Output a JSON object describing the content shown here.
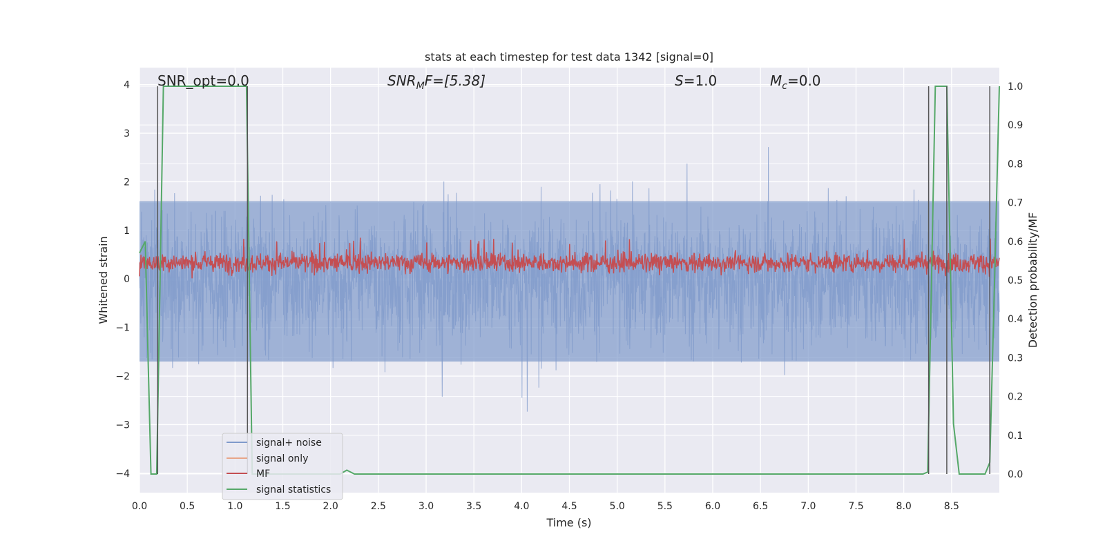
{
  "chart_data": {
    "type": "line",
    "title": "stats at each timestep for test data 1342 [signal=0]",
    "xlabel": "Time (s)",
    "ylabel": "Whitened strain",
    "y2label": "Detection probability/MF",
    "xlim": [
      0,
      9.0
    ],
    "ylim": [
      -4.4,
      4.35
    ],
    "y2lim": [
      -0.048,
      1.048
    ],
    "grid": true,
    "legend_position": "lower-left",
    "xticks": [
      0.0,
      0.5,
      1.0,
      1.5,
      2.0,
      2.5,
      3.0,
      3.5,
      4.0,
      4.5,
      5.0,
      5.5,
      6.0,
      6.5,
      7.0,
      7.5,
      8.0,
      8.5
    ],
    "xtick_labels": [
      "0.0",
      "0.5",
      "1.0",
      "1.5",
      "2.0",
      "2.5",
      "3.0",
      "3.5",
      "4.0",
      "4.5",
      "5.0",
      "5.5",
      "6.0",
      "6.5",
      "7.0",
      "7.5",
      "8.0",
      "8.5"
    ],
    "yticks": [
      4,
      3,
      2,
      1,
      0,
      -1,
      -2,
      -3,
      -4
    ],
    "ytick_labels": [
      "4",
      "3",
      "2",
      "1",
      "0",
      "−1",
      "−2",
      "−3",
      "−4"
    ],
    "y2ticks": [
      1.0,
      0.9,
      0.8,
      0.7,
      0.6,
      0.5,
      0.4,
      0.3,
      0.2,
      0.1,
      0.0
    ],
    "y2tick_labels": [
      "1.0",
      "0.9",
      "0.8",
      "0.7",
      "0.6",
      "0.5",
      "0.4",
      "0.3",
      "0.2",
      "0.1",
      "0.0"
    ],
    "annotations": {
      "snr_opt": "SNR_opt=0.0",
      "snr_mf_base": "SNR",
      "snr_mf_sub": "M",
      "snr_mf_rest": "F=[5.38]",
      "s_label": "S",
      "s_value": "=1.0",
      "mc_base": "M",
      "mc_sub": "c",
      "mc_value": "=0.0"
    },
    "series": [
      {
        "name": "signal+ noise",
        "color": "#7f9acb",
        "axis": "left",
        "envelope": {
          "typical_low": -1.7,
          "typical_high": 1.6,
          "min": -3.6,
          "max": 3.95
        }
      },
      {
        "name": "signal only",
        "color": "#e8a588",
        "axis": "left",
        "values": []
      },
      {
        "name": "MF",
        "color": "#c44e52",
        "axis": "right",
        "envelope": {
          "low": 0.51,
          "high": 0.58,
          "max": 0.625
        }
      },
      {
        "name": "signal statistics",
        "color": "#55a868",
        "axis": "right",
        "points": [
          [
            0.0,
            0.57
          ],
          [
            0.06,
            0.6
          ],
          [
            0.09,
            0.3
          ],
          [
            0.12,
            0.0
          ],
          [
            0.18,
            0.0
          ],
          [
            0.25,
            1.0
          ],
          [
            1.12,
            1.0
          ],
          [
            1.18,
            0.0
          ],
          [
            2.1,
            0.0
          ],
          [
            2.17,
            0.01
          ],
          [
            2.25,
            0.0
          ],
          [
            6.3,
            0.0
          ],
          [
            8.2,
            0.0
          ],
          [
            8.25,
            0.005
          ],
          [
            8.33,
            1.0
          ],
          [
            8.45,
            1.0
          ],
          [
            8.52,
            0.13
          ],
          [
            8.58,
            0.0
          ],
          [
            8.85,
            0.0
          ],
          [
            8.9,
            0.03
          ],
          [
            8.95,
            0.5
          ],
          [
            9.0,
            1.0
          ]
        ]
      }
    ],
    "vertical_markers_s": [
      0.19,
      1.13,
      8.26,
      8.45,
      8.9
    ]
  }
}
